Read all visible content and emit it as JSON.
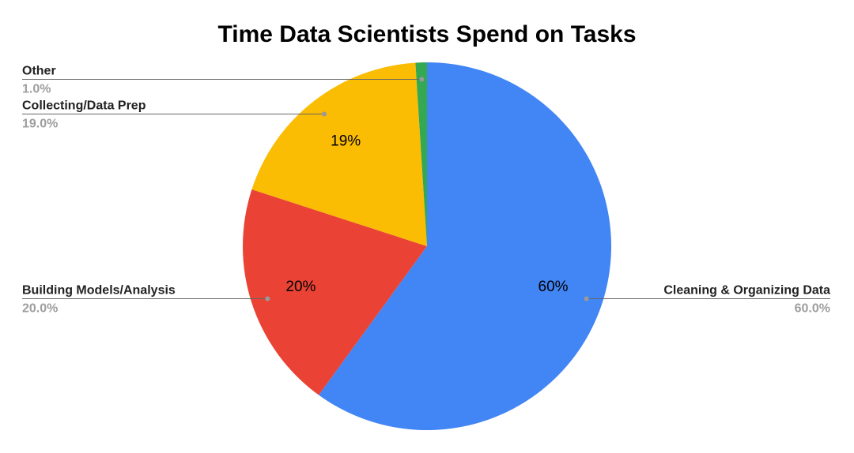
{
  "chart_data": {
    "type": "pie",
    "title": "Time Data Scientists Spend on Tasks",
    "slices": [
      {
        "label": "Cleaning & Organizing Data",
        "value": 60.0,
        "percent_label": "60.0%",
        "inner_label": "60%",
        "color": "#4285f4"
      },
      {
        "label": "Building Models/Analysis",
        "value": 20.0,
        "percent_label": "20.0%",
        "inner_label": "20%",
        "color": "#ea4335"
      },
      {
        "label": "Collecting/Data Prep",
        "value": 19.0,
        "percent_label": "19.0%",
        "inner_label": "19%",
        "color": "#fbbc04"
      },
      {
        "label": "Other",
        "value": 1.0,
        "percent_label": "1.0%",
        "inner_label": "",
        "color": "#34a853"
      }
    ],
    "legend": "none",
    "start_angle": "top",
    "direction": "clockwise"
  }
}
